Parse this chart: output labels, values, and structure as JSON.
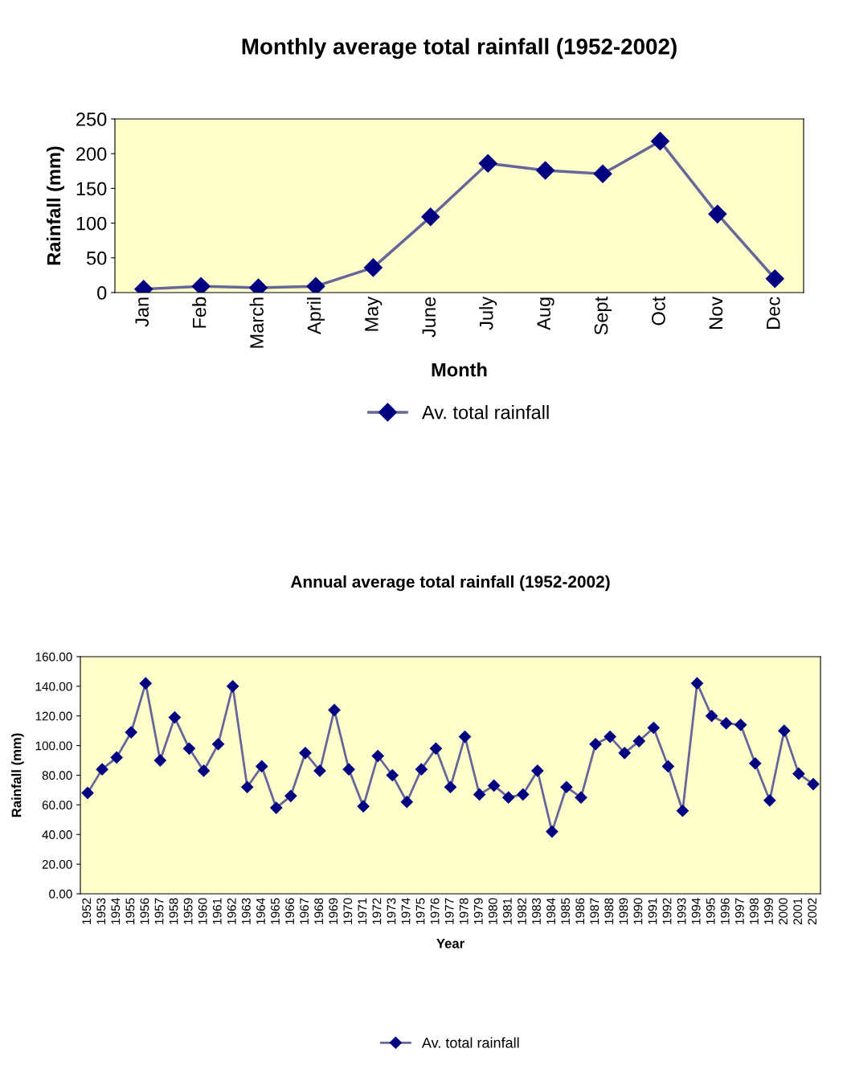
{
  "chart_data": [
    {
      "type": "line",
      "title": "Monthly average total rainfall (1952-2002)",
      "xlabel": "Month",
      "ylabel": "Rainfall (mm)",
      "categories": [
        "Jan",
        "Feb",
        "March",
        "April",
        "May",
        "June",
        "July",
        "Aug",
        "Sept",
        "Oct",
        "Nov",
        "Dec"
      ],
      "series": [
        {
          "name": "Av. total rainfall",
          "color": "#000080",
          "values": [
            5,
            9,
            7,
            9,
            36,
            109,
            186,
            176,
            171,
            218,
            113,
            20
          ]
        }
      ],
      "ylim": [
        0,
        250
      ],
      "yticks": [
        0,
        50,
        100,
        150,
        200,
        250
      ],
      "grid": false,
      "legend": "bottom",
      "marker": "diamond",
      "line_style": "solid"
    },
    {
      "type": "line",
      "title": "Annual average total rainfall (1952-2002)",
      "xlabel": "Year",
      "ylabel": "Rainfall (mm)",
      "categories": [
        "1952",
        "1953",
        "1954",
        "1955",
        "1956",
        "1957",
        "1958",
        "1959",
        "1960",
        "1961",
        "1962",
        "1963",
        "1964",
        "1965",
        "1966",
        "1967",
        "1968",
        "1969",
        "1970",
        "1971",
        "1972",
        "1973",
        "1974",
        "1975",
        "1976",
        "1977",
        "1978",
        "1979",
        "1980",
        "1981",
        "1982",
        "1983",
        "1984",
        "1985",
        "1986",
        "1987",
        "1988",
        "1989",
        "1990",
        "1991",
        "1992",
        "1993",
        "1994",
        "1995",
        "1996",
        "1997",
        "1998",
        "1999",
        "2000",
        "2001",
        "2002"
      ],
      "series": [
        {
          "name": "Av. total rainfall",
          "color": "#000080",
          "values": [
            68,
            84,
            92,
            109,
            142,
            90,
            119,
            98,
            83,
            101,
            140,
            72,
            86,
            58,
            66,
            95,
            83,
            124,
            84,
            59,
            93,
            80,
            62,
            84,
            98,
            72,
            106,
            67,
            73,
            65,
            67,
            83,
            42,
            72,
            65,
            101,
            106,
            95,
            103,
            112,
            86,
            56,
            142,
            120,
            115,
            114,
            88,
            63,
            110,
            81,
            74
          ]
        }
      ],
      "ylim": [
        0,
        160
      ],
      "yticks": [
        {
          "value": 0,
          "label": "0.00"
        },
        {
          "value": 20,
          "label": "20.00"
        },
        {
          "value": 40,
          "label": "40.00"
        },
        {
          "value": 60,
          "label": "60.00"
        },
        {
          "value": 80,
          "label": "80.00"
        },
        {
          "value": 100,
          "label": "100.00"
        },
        {
          "value": 120,
          "label": "120.00"
        },
        {
          "value": 140,
          "label": "140.00"
        },
        {
          "value": 160,
          "label": "160.00"
        }
      ],
      "grid": false,
      "legend": "bottom",
      "marker": "diamond",
      "line_style": "solid"
    }
  ]
}
